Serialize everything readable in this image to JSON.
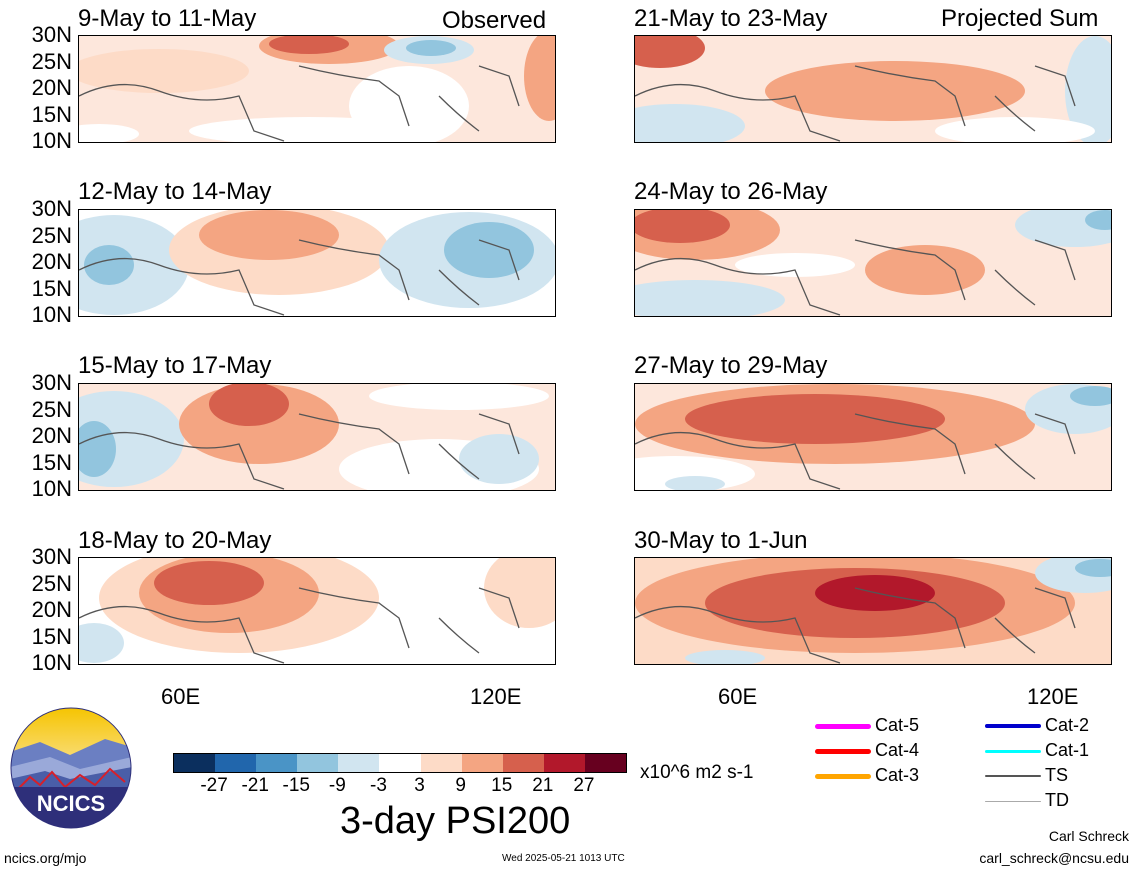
{
  "panels": [
    {
      "id": "p1",
      "title": "9-May to 11-May",
      "tag": "Observed"
    },
    {
      "id": "p2",
      "title": "12-May to 14-May",
      "tag": ""
    },
    {
      "id": "p3",
      "title": "15-May to 17-May",
      "tag": ""
    },
    {
      "id": "p4",
      "title": "18-May to 20-May",
      "tag": ""
    },
    {
      "id": "p5",
      "title": "21-May to 23-May",
      "tag": "Projected Sum"
    },
    {
      "id": "p6",
      "title": "24-May to 26-May",
      "tag": ""
    },
    {
      "id": "p7",
      "title": "27-May to 29-May",
      "tag": ""
    },
    {
      "id": "p8",
      "title": "30-May to 1-Jun",
      "tag": ""
    }
  ],
  "lat_labels": [
    "30N",
    "25N",
    "20N",
    "15N",
    "10N"
  ],
  "lon_labels": [
    "60E",
    "120E"
  ],
  "colorbar": {
    "ticks": [
      "-27",
      "-21",
      "-15",
      "-9",
      "-3",
      "3",
      "9",
      "15",
      "21",
      "27"
    ],
    "colors": [
      "#0b2f5e",
      "#2166ac",
      "#4a94c6",
      "#92c5de",
      "#d1e5f0",
      "#ffffff",
      "#fddbc7",
      "#f4a582",
      "#d6604d",
      "#b2182b",
      "#67001f"
    ],
    "units": "x10^6 m2 s-1",
    "title": "3-day PSI200"
  },
  "legend": [
    {
      "label": "Cat-5",
      "color": "#ff00ff"
    },
    {
      "label": "Cat-4",
      "color": "#ff0000"
    },
    {
      "label": "Cat-3",
      "color": "#ffa500"
    },
    {
      "label": "Cat-2",
      "color": "#0000cc"
    },
    {
      "label": "Cat-1",
      "color": "#00ffff"
    },
    {
      "label": "TS",
      "color": "#555555"
    },
    {
      "label": "TD",
      "color": "#aaaaaa"
    }
  ],
  "logo": {
    "text": "NCICS"
  },
  "footer": {
    "url": "ncics.org/mjo",
    "date": "Wed 2025-05-21 1013 UTC",
    "author": "Carl Schreck",
    "email": "carl_schreck@ncsu.edu"
  }
}
